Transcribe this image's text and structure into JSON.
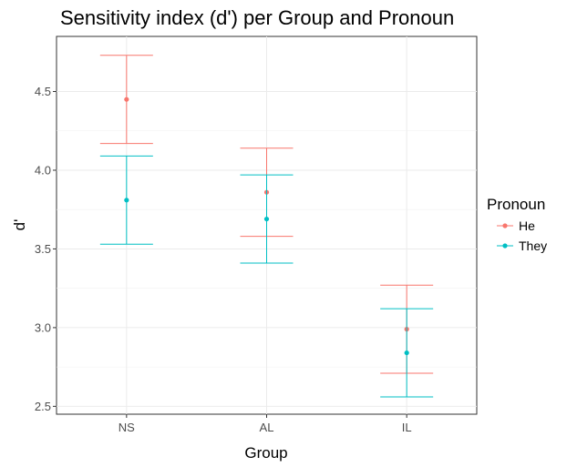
{
  "chart_data": {
    "type": "errorbar",
    "title": "Sensitivity index (d') per Group and Pronoun",
    "xlabel": "Group",
    "ylabel": "d'",
    "categories": [
      "NS",
      "AL",
      "IL"
    ],
    "ylim": [
      2.45,
      4.85
    ],
    "yticks": [
      2.5,
      3.0,
      3.5,
      4.0,
      4.5
    ],
    "ytick_labels": [
      "2.5",
      "3.0",
      "3.5",
      "4.0",
      "4.5"
    ],
    "grid": true,
    "legend": {
      "title": "Pronoun",
      "position": "right"
    },
    "series": [
      {
        "name": "He",
        "color": "#f8766d",
        "means": [
          4.45,
          3.86,
          2.99
        ],
        "lower": [
          4.17,
          3.58,
          2.71
        ],
        "upper": [
          4.73,
          4.14,
          3.27
        ]
      },
      {
        "name": "They",
        "color": "#00bfc4",
        "means": [
          3.81,
          3.69,
          2.84
        ],
        "lower": [
          3.53,
          3.41,
          2.56
        ],
        "upper": [
          4.09,
          3.97,
          3.12
        ]
      }
    ]
  }
}
